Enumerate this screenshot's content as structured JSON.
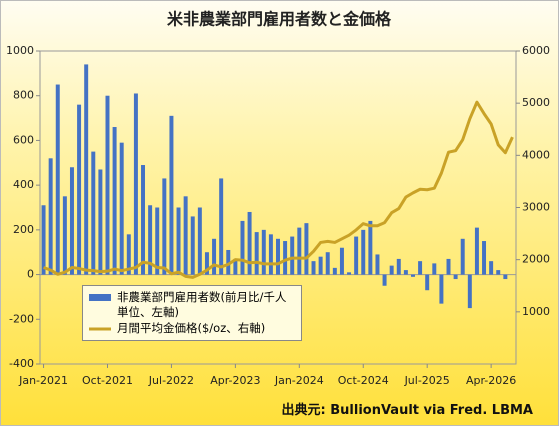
{
  "chart_data": {
    "type": "bar-line",
    "title": "米非農業部門雇用者数と金価格",
    "source": "出典元: BullionVault via Fred. LBMA",
    "categories": [
      "Jan-2021",
      null,
      null,
      null,
      null,
      null,
      null,
      null,
      null,
      "Oct-2021",
      null,
      null,
      null,
      null,
      null,
      null,
      null,
      null,
      "Jul-2022",
      null,
      null,
      null,
      null,
      null,
      null,
      null,
      null,
      "Apr-2023",
      null,
      null,
      null,
      null,
      null,
      null,
      null,
      null,
      "Jan-2024",
      null,
      null,
      null,
      null,
      null,
      null,
      null,
      null,
      "Oct-2024",
      null,
      null,
      null,
      null,
      null,
      null,
      null,
      null,
      "Jul-2025",
      null,
      null,
      null,
      null,
      null,
      null,
      null,
      null,
      "Apr-2026",
      null,
      null,
      null
    ],
    "series": [
      {
        "name": "非農業部門雇用者数(前月比/千人単位、左軸)",
        "type": "bar",
        "color": "#4472c4",
        "values": [
          310,
          520,
          850,
          350,
          480,
          760,
          940,
          550,
          470,
          800,
          660,
          590,
          180,
          810,
          490,
          310,
          300,
          430,
          710,
          300,
          350,
          260,
          300,
          100,
          160,
          430,
          110,
          70,
          240,
          280,
          190,
          200,
          180,
          160,
          150,
          170,
          210,
          230,
          60,
          80,
          100,
          30,
          120,
          10,
          170,
          200,
          240,
          90,
          -50,
          40,
          70,
          20,
          -10,
          60,
          -70,
          50,
          -130,
          70,
          -20,
          160,
          -150,
          210,
          150,
          60,
          20,
          -20,
          null
        ]
      },
      {
        "name": "月間平均金価格($/oz、右軸)",
        "type": "line",
        "axis": "y2",
        "color": "#c9a227",
        "values": [
          1850,
          1800,
          1720,
          1760,
          1850,
          1830,
          1800,
          1790,
          1770,
          1780,
          1820,
          1790,
          1820,
          1850,
          1950,
          1930,
          1850,
          1840,
          1730,
          1760,
          1680,
          1660,
          1720,
          1800,
          1900,
          1860,
          1910,
          2000,
          1990,
          1940,
          1950,
          1920,
          1920,
          1920,
          1990,
          2030,
          2030,
          2030,
          2160,
          2330,
          2350,
          2330,
          2400,
          2470,
          2570,
          2690,
          2650,
          2650,
          2710,
          2900,
          2980,
          3200,
          3280,
          3350,
          3340,
          3370,
          3660,
          4060,
          4090,
          4300,
          4700,
          5020,
          4800,
          4600,
          4200,
          4050,
          4350
        ]
      }
    ],
    "ylim": [
      -400,
      1000
    ],
    "yticks": [
      -400,
      -200,
      0,
      200,
      400,
      600,
      800,
      1000
    ],
    "y2lim": [
      0,
      6000
    ],
    "y2ticks": [
      1000,
      2000,
      3000,
      4000,
      5000,
      6000
    ],
    "legend": "lower-left"
  }
}
